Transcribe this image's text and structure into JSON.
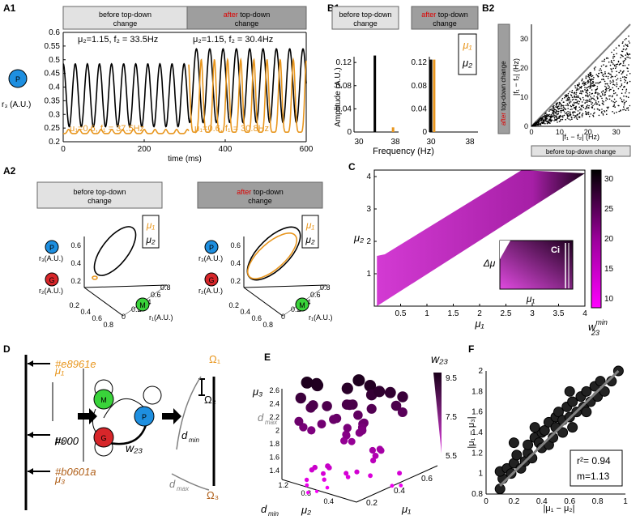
{
  "colors": {
    "orange": "#e8961e",
    "black": "#000000",
    "red": "#d7262a",
    "green": "#39d33a",
    "blue": "#1e8fe0",
    "gray": "#808080",
    "banner_light": "#e2e2e2",
    "banner_dark": "#9e9e9e",
    "brown": "#b0601a"
  },
  "labels": {
    "A1": "A1",
    "A2": "A2",
    "B1": "B1",
    "B2": "B2",
    "C": "C",
    "D": "D",
    "E": "E",
    "F": "F",
    "before": "before top-down",
    "after_red": "after",
    "after_rest": " top-down",
    "change": "change",
    "before_full": "before top-down change",
    "after_full": "after top-down change",
    "P": "P",
    "G": "G",
    "M": "M"
  },
  "panelA1": {
    "ylabel": "r₃ (A.U.)",
    "xlabel": "time (ms)",
    "yticks": [
      "0.2",
      "0.25",
      "0.3",
      "0.35",
      "0.4",
      "0.45",
      "0.5",
      "0.55",
      "0.6"
    ],
    "xticks": [
      "0",
      "200",
      "400",
      "600"
    ],
    "mu2_before": "μ₂=1.15,  f₂ = 33.5Hz",
    "mu2_after": "μ₂=1.15,  f₂ = 30.4Hz",
    "mu1_before": "μ₁=0.6,  f₁ = 37.5Hz",
    "mu1_after": "μ₁=0.6,  f₁ = 30.8Hz"
  },
  "panelB1": {
    "ylabel": "Amplitude (A.U.)",
    "xlabel": "Frequency (Hz)",
    "yticks": [
      "0",
      "0.04",
      "0.08",
      "0.12"
    ],
    "xticks_left": [
      "30",
      "38"
    ],
    "xticks_right": [
      "30",
      "38"
    ],
    "leg1": "μ₁",
    "leg2": "μ₂"
  },
  "panelB2": {
    "ylabel": "|f₁ − f₂| (Hz)",
    "xlabel": "|f₁ − f₂| (Hz)",
    "yticks": [
      "0",
      "10",
      "20",
      "30"
    ],
    "xticks": [
      "0",
      "10",
      "20",
      "30"
    ]
  },
  "panelA2": {
    "r3": "r₃(A.U.)",
    "r2": "r₂(A.U.)",
    "r1": "r₁(A.U.)",
    "zt": [
      "0.2",
      "0.4",
      "0.6"
    ],
    "yt": [
      "0.2",
      "0.4",
      "0.6",
      "0.8"
    ],
    "xt": [
      "0",
      "0.2",
      "0.4",
      "0.6",
      "0.8"
    ],
    "leg1": "μ₁",
    "leg2": "μ₂"
  },
  "panelC": {
    "ylabel": "μ₂",
    "xlabel": "μ₁",
    "xticks": [
      "0.5",
      "1",
      "1.5",
      "2",
      "2.5",
      "3",
      "3.5",
      "4"
    ],
    "yticks": [
      "1",
      "2",
      "3",
      "4"
    ],
    "cbticks": [
      "10",
      "15",
      "20",
      "25",
      "30"
    ],
    "cblabel": "w",
    "cblabel_sup": "min",
    "cblabel_sub": "23",
    "inset_y": "Δμ",
    "inset_x": "μ₁",
    "inset_tag": "Ci"
  },
  "panelD": {
    "mu1": "μ₁",
    "mu2": "μ₂",
    "mu3": "μ₃",
    "w23": "w₂₃",
    "Omega1": "Ω₁",
    "Omega2": "Ω₂",
    "Omega3": "Ω₃",
    "dmin": "d_min",
    "dmax": "d_max"
  },
  "panelE": {
    "zlabel": "μ₃",
    "zt": [
      "1.4",
      "1.6",
      "1.8",
      "2",
      "2.2",
      "2.4",
      "2.6"
    ],
    "ylabel": "μ₂",
    "yt": [
      "1.2",
      "0.8",
      "0.4"
    ],
    "xlabel": "μ₁",
    "xt": [
      "0.2",
      "0.4",
      "0.6"
    ],
    "dmax": "d_max",
    "dmin": "d_min",
    "cb_label": "w₂₃",
    "cbticks": [
      "9.5",
      "7.5",
      "5.5"
    ]
  },
  "chart_data": [
    {
      "type": "line",
      "title": "A1",
      "x_range": [
        0,
        600
      ],
      "ylim": [
        0.2,
        0.6
      ],
      "series": [
        {
          "name": "μ₂ before (black)",
          "x_range": [
            0,
            310
          ],
          "frequency_hz": 33.5,
          "min": 0.255,
          "max": 0.485
        },
        {
          "name": "μ₂ after (black)",
          "x_range": [
            310,
            600
          ],
          "frequency_hz": 30.4,
          "min": 0.27,
          "max": 0.54
        },
        {
          "name": "μ₁ before (orange)",
          "x_range": [
            0,
            310
          ],
          "frequency_hz": 37.5,
          "min": 0.23,
          "max": 0.245
        },
        {
          "name": "μ₁ after (orange)",
          "x_range": [
            310,
            600
          ],
          "frequency_hz": 30.8,
          "min": 0.235,
          "max": 0.5
        }
      ]
    },
    {
      "type": "bar",
      "title": "B1",
      "xlabel": "Frequency (Hz)",
      "ylabel": "Amplitude (A.U.)",
      "ylim": [
        0,
        0.13
      ],
      "before": [
        {
          "freq": 33.5,
          "amp": 0.132,
          "series": "μ₂"
        },
        {
          "freq": 37.5,
          "amp": 0.008,
          "series": "μ₁"
        }
      ],
      "after": [
        {
          "freq": 30.4,
          "amp": 0.125,
          "series": "μ₂"
        },
        {
          "freq": 30.8,
          "amp": 0.125,
          "series": "μ₁"
        }
      ]
    },
    {
      "type": "scatter",
      "title": "B2",
      "xlim": [
        0,
        35
      ],
      "ylim": [
        0,
        35
      ],
      "note": "identity line, points below diagonal"
    },
    {
      "type": "heatmap",
      "title": "C",
      "xlabel": "μ₁",
      "ylabel": "μ₂",
      "xlim": [
        0,
        4
      ],
      "ylim": [
        0,
        4.2
      ],
      "colorbar": [
        7,
        30
      ]
    },
    {
      "type": "scatter",
      "title": "E",
      "zlabel": "μ₃",
      "xlabel": "μ₁",
      "ylabel": "μ₂",
      "color": "w₂₃",
      "crange": [
        5.5,
        9.5
      ]
    },
    {
      "type": "scatter",
      "title": "F",
      "xlabel": "|μ₁ − μ₂|",
      "ylabel": "|μ₁ − μ₃|",
      "xlim": [
        0,
        1
      ],
      "ylim": [
        0.8,
        2
      ],
      "r2": "r²= 0.94",
      "m": "m=1.13",
      "points": [
        [
          0.1,
          0.85
        ],
        [
          0.12,
          0.95
        ],
        [
          0.1,
          1.02
        ],
        [
          0.15,
          1.05
        ],
        [
          0.18,
          1.0
        ],
        [
          0.2,
          1.1
        ],
        [
          0.22,
          1.18
        ],
        [
          0.25,
          1.05
        ],
        [
          0.28,
          1.12
        ],
        [
          0.3,
          1.2
        ],
        [
          0.3,
          1.28
        ],
        [
          0.33,
          1.15
        ],
        [
          0.35,
          1.35
        ],
        [
          0.38,
          1.3
        ],
        [
          0.4,
          1.25
        ],
        [
          0.4,
          1.4
        ],
        [
          0.42,
          1.42
        ],
        [
          0.45,
          1.28
        ],
        [
          0.45,
          1.5
        ],
        [
          0.48,
          1.35
        ],
        [
          0.5,
          1.45
        ],
        [
          0.5,
          1.55
        ],
        [
          0.52,
          1.6
        ],
        [
          0.55,
          1.4
        ],
        [
          0.55,
          1.52
        ],
        [
          0.58,
          1.65
        ],
        [
          0.6,
          1.55
        ],
        [
          0.62,
          1.45
        ],
        [
          0.62,
          1.7
        ],
        [
          0.65,
          1.6
        ],
        [
          0.68,
          1.75
        ],
        [
          0.7,
          1.65
        ],
        [
          0.72,
          1.6
        ],
        [
          0.72,
          1.8
        ],
        [
          0.75,
          1.7
        ],
        [
          0.78,
          1.85
        ],
        [
          0.8,
          1.75
        ],
        [
          0.82,
          1.9
        ],
        [
          0.85,
          1.8
        ],
        [
          0.9,
          1.9
        ],
        [
          0.95,
          2.0
        ],
        [
          0.2,
          1.3
        ],
        [
          0.35,
          1.45
        ],
        [
          0.6,
          1.8
        ]
      ]
    }
  ]
}
